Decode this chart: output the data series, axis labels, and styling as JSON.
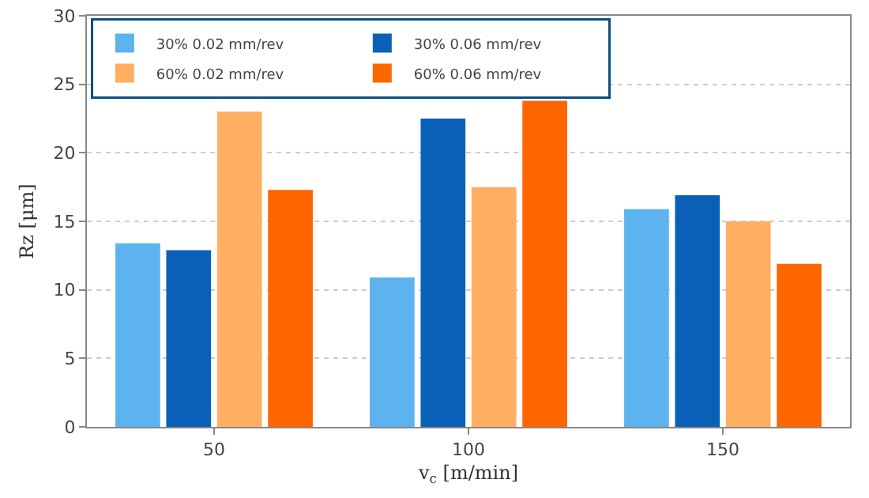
{
  "chart_data": {
    "type": "bar",
    "xlabel": "v$_{c}$ [m/min]",
    "ylabel": "Rz [μm]",
    "categories": [
      "50",
      "100",
      "150"
    ],
    "series": [
      {
        "name": "30% 0.02 mm/rev",
        "color": "#5cb3ee",
        "values": [
          13.4,
          10.9,
          15.9
        ]
      },
      {
        "name": "30% 0.06 mm/rev",
        "color": "#0a60b6",
        "values": [
          12.9,
          22.5,
          16.9
        ]
      },
      {
        "name": "60% 0.02 mm/rev",
        "color": "#ffae62",
        "values": [
          23.0,
          17.5,
          15.0
        ]
      },
      {
        "name": "60% 0.06 mm/rev",
        "color": "#ff6600",
        "values": [
          17.3,
          23.8,
          11.9
        ]
      }
    ],
    "ylim": [
      0,
      30
    ],
    "yticks": [
      0,
      5,
      10,
      15,
      20,
      25,
      30
    ],
    "grid": "y",
    "legend": "top left"
  }
}
